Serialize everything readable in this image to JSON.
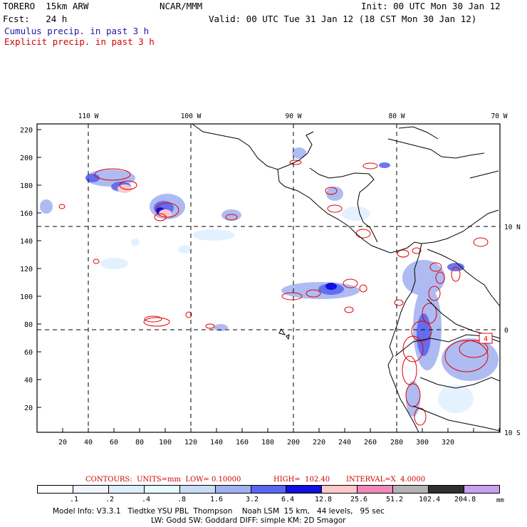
{
  "header": {
    "model": "TORERO  15km ARW",
    "org": "NCAR/MMM",
    "init": "Init: 00 UTC Mon 30 Jan 12",
    "fcst": "Fcst:   24 h",
    "valid": "Valid: 00 UTC Tue 31 Jan 12 (18 CST Mon 30 Jan 12)",
    "field1": "Cumulus precip. in past 3 h",
    "field2": "Explicit precip. in past 3 h"
  },
  "map": {
    "lon_labels": [
      "110 W",
      "100 W",
      "90 W",
      "80 W",
      "70 W"
    ],
    "lat_labels": [
      "10 N",
      "0",
      "10 S"
    ],
    "x_ticks": [
      "20",
      "40",
      "60",
      "80",
      "100",
      "120",
      "140",
      "160",
      "180",
      "200",
      "220",
      "240",
      "260",
      "280",
      "300",
      "320"
    ],
    "y_ticks": [
      "220",
      "200",
      "180",
      "160",
      "140",
      "120",
      "100",
      "80",
      "60",
      "40",
      "20"
    ],
    "contour_label": "4"
  },
  "contours": {
    "units_text": "CONTOURS:  UNITS=mm  LOW= 0.10000",
    "high_text": "HIGH=  102.40",
    "interval_text": "INTERVAL=X  4.0000"
  },
  "legend": {
    "labels": [
      ".1",
      ".2",
      ".4",
      ".8",
      "1.6",
      "3.2",
      "6.4",
      "12.8",
      "25.6",
      "51.2",
      "102.4",
      "204.8"
    ],
    "unit": "mm",
    "colors": [
      "#ffffff",
      "#f0f4ff",
      "#ddeeff",
      "#e6fbff",
      "#c8dcf4",
      "#a0b0f0",
      "#5a66f0",
      "#1010e0",
      "#ffc8c8",
      "#f088b8",
      "#b4b4b4",
      "#303030",
      "#c8a0f0"
    ]
  },
  "footer": {
    "line1": "Model Info: V3.3.1   Tiedtke YSU PBL  Thompson    Noah LSM  15 km,   44 levels,   95 sec",
    "line2": "LW: Godd SW: Goddard DIFF: simple KM: 2D Smagor"
  }
}
